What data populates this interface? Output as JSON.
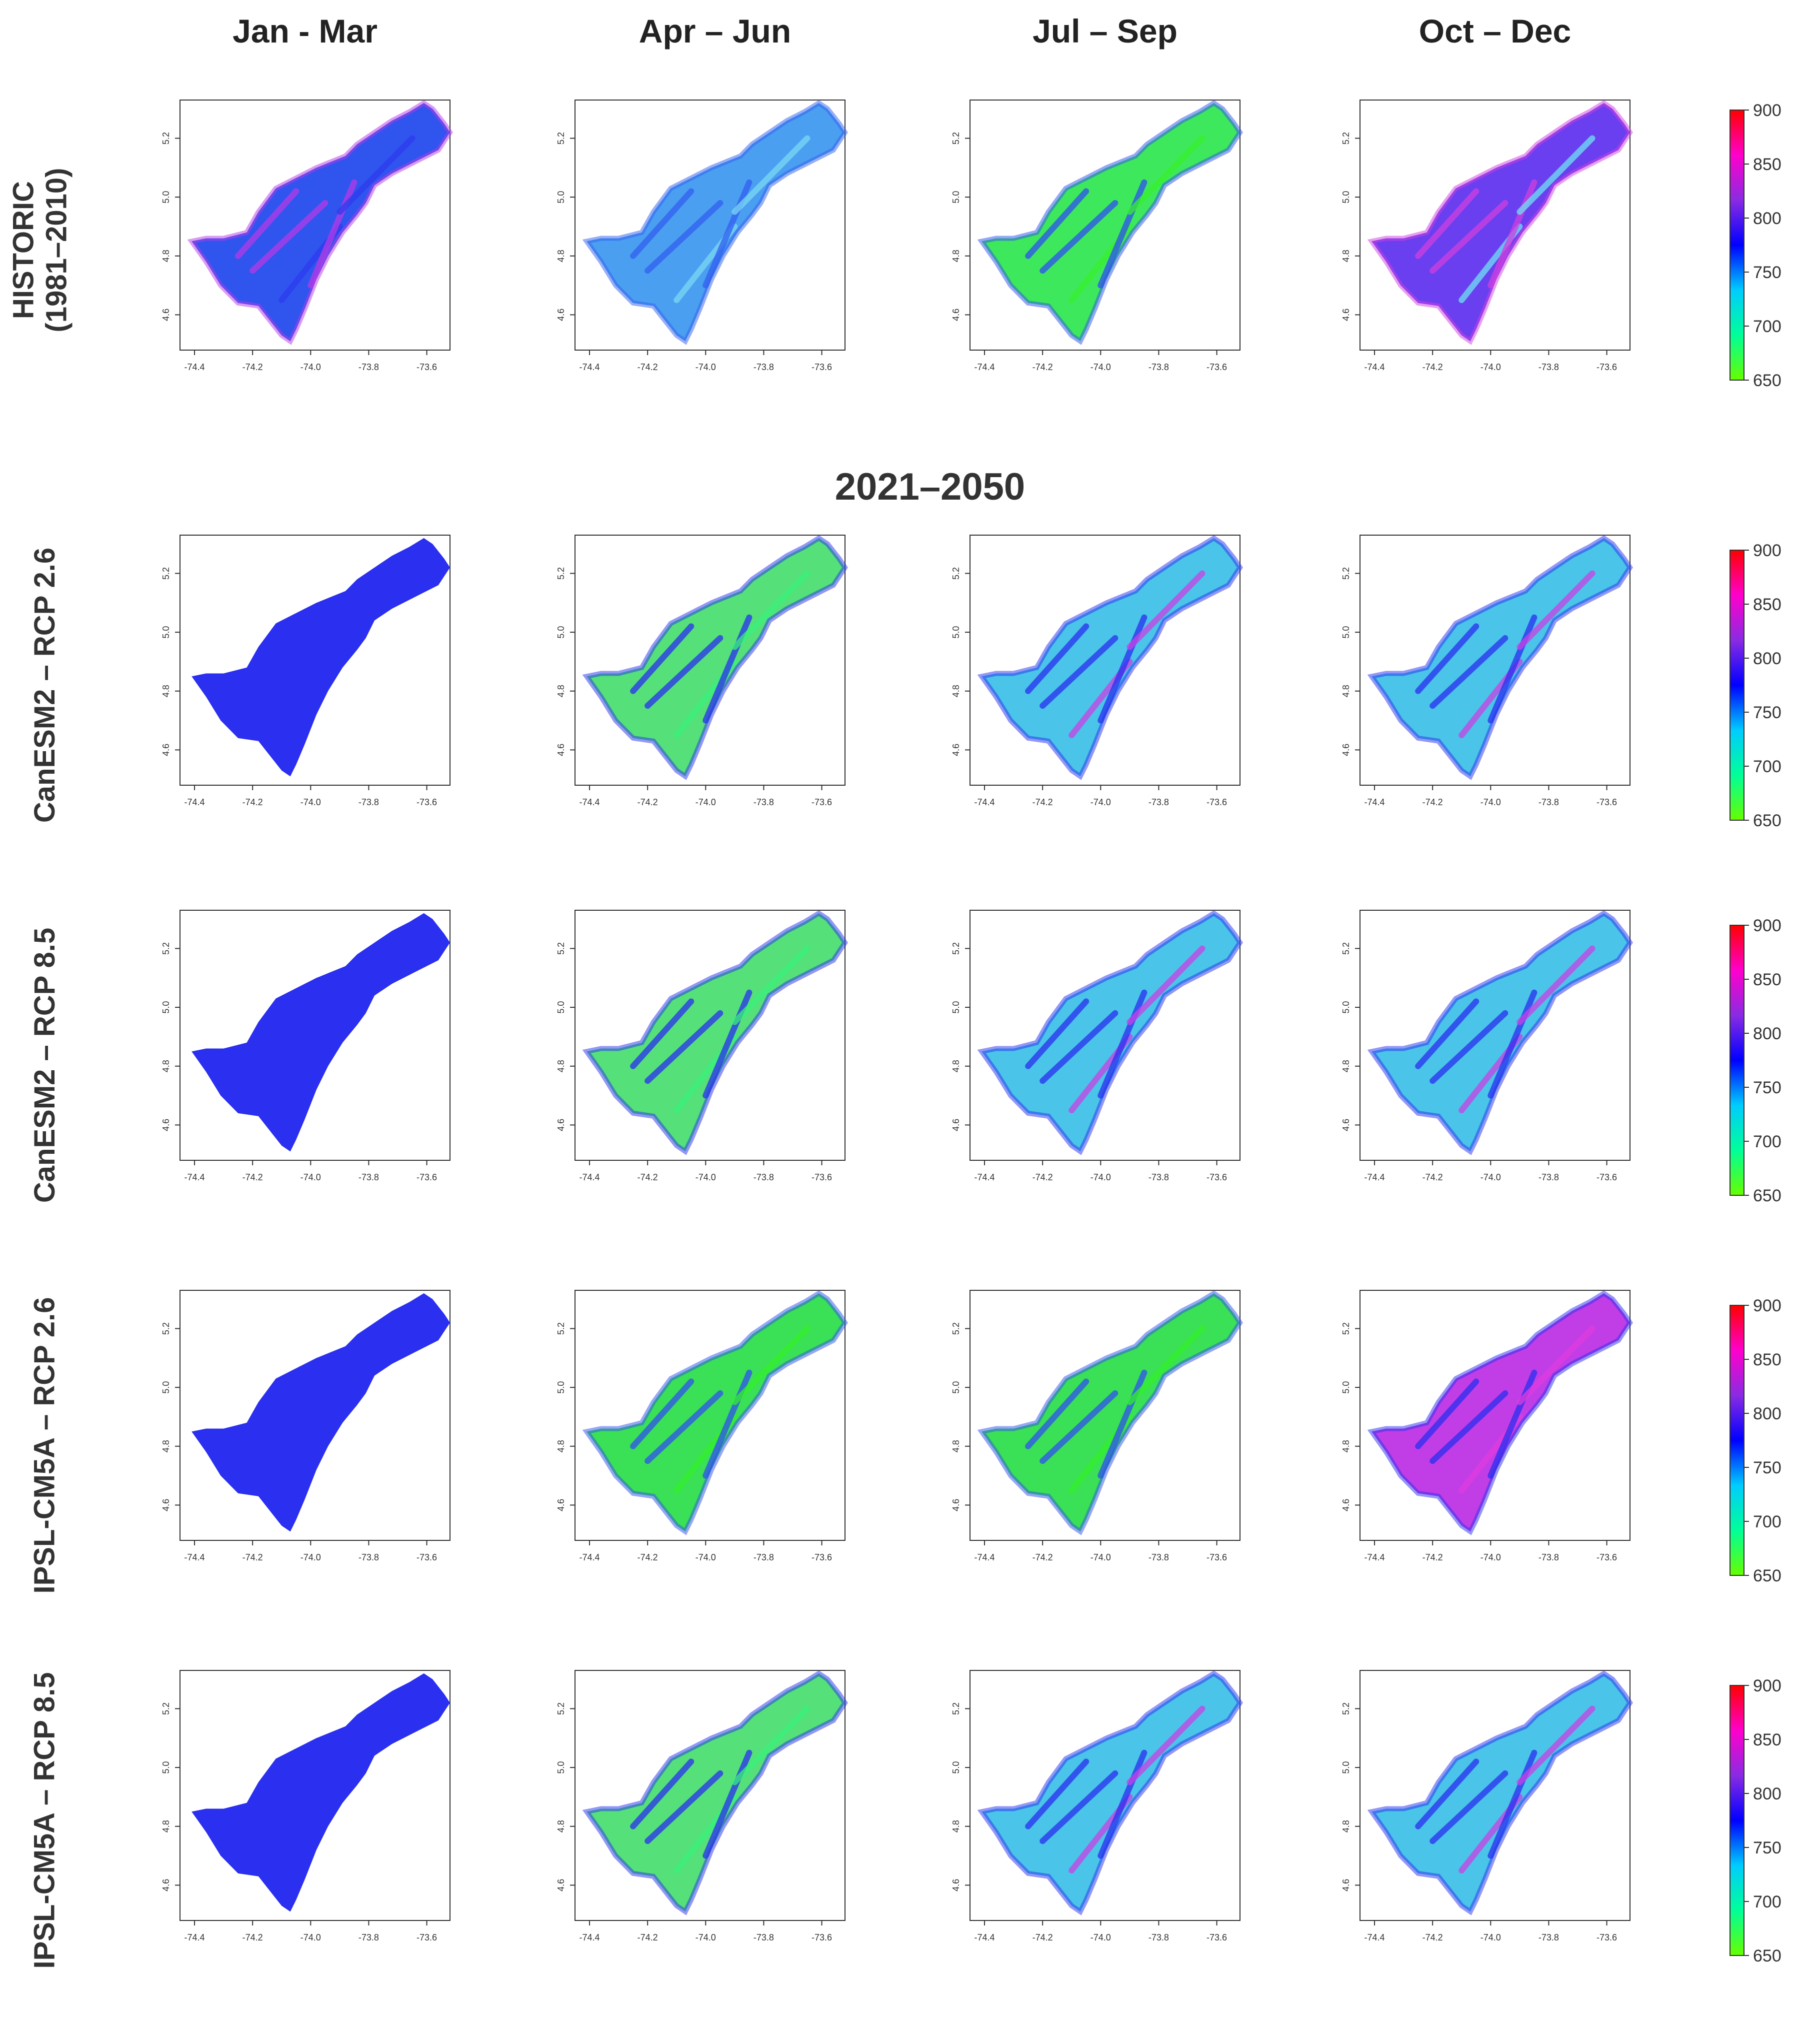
{
  "columns": [
    "Jan - Mar",
    "Apr – Jun",
    "Jul – Sep",
    "Oct – Dec"
  ],
  "future_period": "2021–2050",
  "rows": [
    {
      "label": "HISTORIC\n(1981–2010)",
      "maps": [
        "blue-mixed",
        "light-blue",
        "green-mixed",
        "violet-mixed"
      ]
    },
    {
      "label": "CanESM2 – RCP 2.6",
      "maps": [
        "uniform-blue",
        "mixed-green",
        "mixed-cyan",
        "mixed-cyan"
      ]
    },
    {
      "label": "CanESM2 – RCP 8.5",
      "maps": [
        "uniform-blue",
        "mixed-green",
        "mixed-cyan",
        "mixed-cyan"
      ]
    },
    {
      "label": "IPSL-CM5A – RCP 2.6",
      "maps": [
        "uniform-blue",
        "mostly-green",
        "mostly-green",
        "magenta-blue"
      ]
    },
    {
      "label": "IPSL-CM5A – RCP 8.5",
      "maps": [
        "uniform-blue",
        "mixed-green",
        "mixed-cyan",
        "mixed-cyan"
      ]
    }
  ],
  "chart_data": {
    "type": "heatmap",
    "xaxis_ticks": [
      "-74.4",
      "-74.2",
      "-74.0",
      "-73.8",
      "-73.6"
    ],
    "yaxis_ticks": [
      "4.6",
      "4.8",
      "5.0",
      "5.2"
    ],
    "x_range": [
      -74.45,
      -73.52
    ],
    "y_range": [
      4.48,
      5.33
    ],
    "legend_ticks": [
      "900",
      "850",
      "800",
      "750",
      "700",
      "650"
    ],
    "legend_range": [
      650,
      900
    ],
    "legend_colors": [
      "#ff0000",
      "#ff00cc",
      "#8a2be2",
      "#0000ff",
      "#00ccff",
      "#00ff99",
      "#66ff00"
    ]
  },
  "colors": {
    "uniform-blue": "#2a2ff0",
    "blue-mixed": "#2f55ee",
    "light-blue": "#4a9ff0",
    "green-mixed": "#3ee85c",
    "violet-mixed": "#6a3ff0",
    "mixed-green": "#55e07a",
    "mixed-cyan": "#4ac4e8",
    "mostly-green": "#3ae055",
    "magenta-blue": "#c13ee6"
  }
}
